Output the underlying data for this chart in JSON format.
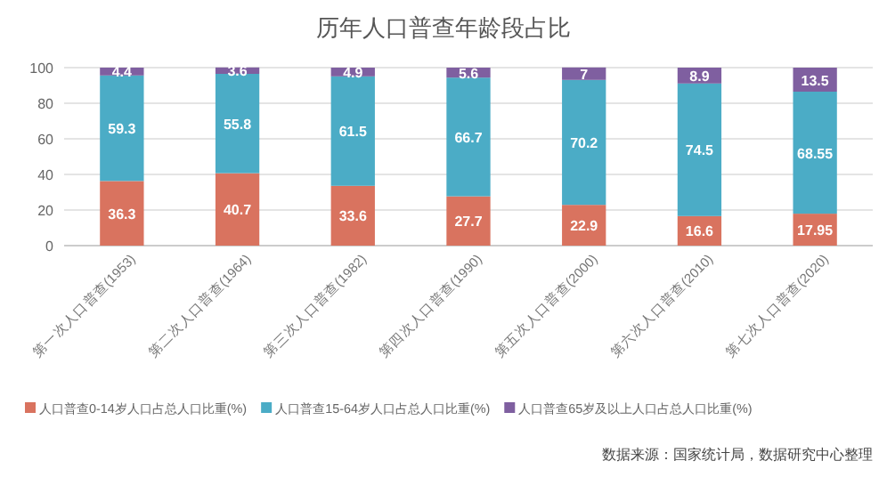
{
  "chart_data": {
    "type": "bar",
    "stacked": true,
    "title": "历年人口普查年龄段占比",
    "categories": [
      "第一次人口普查(1953)",
      "第二次人口普查(1964)",
      "第三次人口普查(1982)",
      "第四次人口普查(1990)",
      "第五次人口普查(2000)",
      "第六次人口普查(2010)",
      "第七次人口普查(2020)"
    ],
    "series": [
      {
        "name": "人口普查0-14岁人口占总人口比重(%)",
        "color": "#d9735f",
        "values": [
          36.3,
          40.7,
          33.6,
          27.7,
          22.9,
          16.6,
          17.95
        ]
      },
      {
        "name": "人口普查15-64岁人口占总人口比重(%)",
        "color": "#4bacc6",
        "values": [
          59.3,
          55.8,
          61.5,
          66.7,
          70.2,
          74.5,
          68.55
        ]
      },
      {
        "name": "人口普查65岁及以上人口占总人口比重(%)",
        "color": "#7f5fa0",
        "values": [
          4.4,
          3.6,
          4.9,
          5.6,
          7,
          8.9,
          13.5
        ]
      }
    ],
    "ylim": [
      0,
      100
    ],
    "yticks": [
      0,
      20,
      40,
      60,
      80,
      100
    ],
    "grid": "y",
    "legend": "bottom",
    "data_labels": true,
    "annotations": [
      "数据来源：国家统计局，数据研究中心整理"
    ]
  }
}
